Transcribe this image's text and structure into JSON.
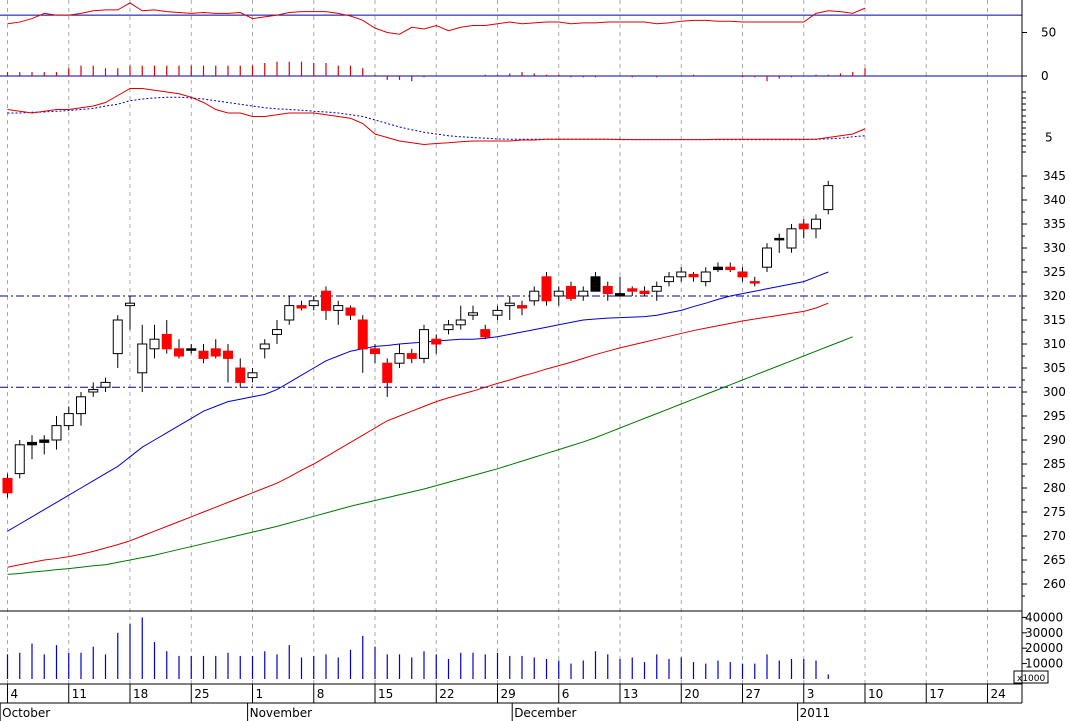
{
  "chart_data": {
    "type": "candlestick",
    "title": "",
    "xlabel": "",
    "ylabel": "",
    "colors": {
      "up_candle": "#ffffff",
      "down_candle": "#ff0000",
      "special_candle": "#000000",
      "ma_short": "#0000cc",
      "ma_mid": "#dd0000",
      "ma_long": "#007700",
      "support_lines": "#0000aa",
      "volume": "#0000cc",
      "oscillator": "#dd0000",
      "grid": "#aaaaaa"
    },
    "x_axis": {
      "day_labels": [
        {
          "slot": 0,
          "label": "4"
        },
        {
          "slot": 5,
          "label": "11"
        },
        {
          "slot": 10,
          "label": "18"
        },
        {
          "slot": 15,
          "label": "25"
        },
        {
          "slot": 20,
          "label": "1"
        },
        {
          "slot": 25,
          "label": "8"
        },
        {
          "slot": 30,
          "label": "15"
        },
        {
          "slot": 35,
          "label": "22"
        },
        {
          "slot": 40,
          "label": "29"
        },
        {
          "slot": 45,
          "label": "6"
        },
        {
          "slot": 50,
          "label": "13"
        },
        {
          "slot": 55,
          "label": "20"
        },
        {
          "slot": 60,
          "label": "27"
        },
        {
          "slot": 65,
          "label": "3"
        },
        {
          "slot": 70,
          "label": "10"
        },
        {
          "slot": 75,
          "label": "17"
        },
        {
          "slot": 80,
          "label": "24"
        }
      ],
      "month_labels": [
        {
          "slot": -0.6,
          "label": "October"
        },
        {
          "slot": 19.6,
          "label": "November"
        },
        {
          "slot": 41.2,
          "label": "December"
        },
        {
          "slot": 64.5,
          "label": "2011"
        }
      ]
    },
    "oscillator_panel": {
      "y_ticks": [
        50,
        0
      ],
      "reference_level": 70,
      "line": [
        60,
        62,
        66,
        72,
        70,
        70,
        72,
        75,
        76,
        76,
        84,
        75,
        76,
        74,
        73,
        72,
        73,
        72,
        72,
        73,
        66,
        68,
        70,
        73,
        74,
        74,
        74,
        72,
        69,
        64,
        55,
        50,
        48,
        56,
        54,
        58,
        52,
        56,
        58,
        58,
        60,
        62,
        60,
        61,
        62,
        62,
        60,
        61,
        61,
        62,
        62,
        62,
        62,
        60,
        61,
        63,
        64,
        64,
        63,
        63,
        62,
        62,
        62,
        62,
        62,
        62,
        72,
        75,
        74,
        72,
        78
      ],
      "histogram": [
        3,
        3,
        3,
        3,
        3,
        6,
        8,
        8,
        6,
        6,
        8,
        8,
        8,
        8,
        8,
        8,
        8,
        8,
        8,
        8,
        8,
        10,
        11,
        11,
        11,
        10,
        10,
        8,
        8,
        6,
        1,
        -3,
        -3,
        -4,
        -1,
        0,
        0,
        0,
        0,
        1,
        1,
        2,
        3,
        2,
        1,
        1,
        -1,
        -1,
        -1,
        0,
        0,
        -1,
        0,
        -1,
        0,
        0,
        1,
        0,
        0,
        0,
        -1,
        -1,
        -4,
        -2,
        -1,
        0,
        1,
        1,
        2,
        3,
        6
      ]
    },
    "macd_panel": {
      "y_ticks": [
        5
      ],
      "line": [
        13,
        12.5,
        12,
        12.5,
        13,
        13,
        13.5,
        14,
        15,
        17,
        19,
        19,
        18.5,
        18,
        17.5,
        16.5,
        15,
        13,
        12,
        12,
        11,
        11,
        11.5,
        12,
        12,
        12,
        11.5,
        11,
        10.5,
        9,
        6,
        5,
        4,
        3.5,
        3,
        3.3,
        3.5,
        3.8,
        4,
        4,
        4,
        4,
        4.3,
        4.3,
        4.5,
        4.5,
        4.5,
        4.5,
        4.5,
        4.5,
        4.4,
        4.4,
        4.4,
        4.4,
        4.4,
        4.4,
        4.4,
        4.4,
        4.5,
        4.5,
        4.5,
        4.5,
        4.5,
        4.5,
        4.5,
        4.5,
        4.5,
        5,
        5.5,
        6,
        7.5
      ],
      "signal": [
        12,
        12,
        12.2,
        12.3,
        12.5,
        12.7,
        13,
        13.3,
        14,
        14.5,
        15.5,
        16,
        16.3,
        16.5,
        16.5,
        16.3,
        16,
        15.5,
        15,
        14.5,
        14,
        13.5,
        13.2,
        13,
        12.8,
        12.5,
        12.3,
        12,
        11.5,
        11,
        10,
        9,
        8,
        7.2,
        6.5,
        6,
        5.5,
        5.2,
        5,
        4.8,
        4.6,
        4.5,
        4.5,
        4.5,
        4.5,
        4.5,
        4.5,
        4.5,
        4.5,
        4.5,
        4.5,
        4.4,
        4.4,
        4.4,
        4.4,
        4.4,
        4.4,
        4.4,
        4.4,
        4.4,
        4.4,
        4.4,
        4.4,
        4.4,
        4.4,
        4.4,
        4.5,
        4.6,
        4.8,
        5.2,
        5.5
      ]
    },
    "price_panel": {
      "y_ticks": [
        260,
        265,
        270,
        275,
        280,
        285,
        290,
        295,
        300,
        305,
        310,
        315,
        320,
        325,
        330,
        335,
        340,
        345
      ],
      "horizontal_levels": [
        320,
        301
      ],
      "candles": [
        {
          "o": 282,
          "h": 283,
          "l": 278,
          "c": 279,
          "k": "dn"
        },
        {
          "o": 283,
          "h": 290,
          "l": 282,
          "c": 289,
          "k": "up"
        },
        {
          "o": 289,
          "h": 291,
          "l": 286,
          "c": 289.5,
          "k": "sp"
        },
        {
          "o": 289.5,
          "h": 291,
          "l": 287,
          "c": 290,
          "k": "sp"
        },
        {
          "o": 290,
          "h": 295,
          "l": 288,
          "c": 293,
          "k": "up"
        },
        {
          "o": 293,
          "h": 297,
          "l": 292,
          "c": 295.5,
          "k": "up"
        },
        {
          "o": 295.5,
          "h": 300,
          "l": 293,
          "c": 299,
          "k": "up"
        },
        {
          "o": 300,
          "h": 302,
          "l": 299,
          "c": 300.5,
          "k": "up"
        },
        {
          "o": 301,
          "h": 303,
          "l": 300,
          "c": 302,
          "k": "up"
        },
        {
          "o": 308,
          "h": 316,
          "l": 305,
          "c": 315,
          "k": "up"
        },
        {
          "o": 318,
          "h": 320,
          "l": 313,
          "c": 318.5,
          "k": "up"
        },
        {
          "o": 304,
          "h": 314,
          "l": 300,
          "c": 310,
          "k": "up"
        },
        {
          "o": 309,
          "h": 314,
          "l": 307,
          "c": 311,
          "k": "up"
        },
        {
          "o": 312,
          "h": 315,
          "l": 308,
          "c": 309,
          "k": "dn"
        },
        {
          "o": 309,
          "h": 311,
          "l": 307,
          "c": 307.5,
          "k": "dn"
        },
        {
          "o": 309,
          "h": 310,
          "l": 308,
          "c": 309,
          "k": "sp"
        },
        {
          "o": 308.5,
          "h": 310,
          "l": 306,
          "c": 307,
          "k": "dn"
        },
        {
          "o": 309,
          "h": 311,
          "l": 307,
          "c": 307.5,
          "k": "dn"
        },
        {
          "o": 308.5,
          "h": 310,
          "l": 302,
          "c": 307,
          "k": "dn"
        },
        {
          "o": 305,
          "h": 307,
          "l": 301,
          "c": 302,
          "k": "dn"
        },
        {
          "o": 303,
          "h": 305,
          "l": 302,
          "c": 304,
          "k": "up"
        },
        {
          "o": 309,
          "h": 311,
          "l": 307,
          "c": 310,
          "k": "up"
        },
        {
          "o": 312,
          "h": 315,
          "l": 310,
          "c": 313,
          "k": "up"
        },
        {
          "o": 315,
          "h": 320,
          "l": 314,
          "c": 318,
          "k": "up"
        },
        {
          "o": 318,
          "h": 319,
          "l": 317,
          "c": 317.5,
          "k": "dn"
        },
        {
          "o": 318,
          "h": 320,
          "l": 317,
          "c": 319,
          "k": "up"
        },
        {
          "o": 321,
          "h": 322,
          "l": 315,
          "c": 317,
          "k": "dn"
        },
        {
          "o": 317,
          "h": 319,
          "l": 314,
          "c": 318,
          "k": "up"
        },
        {
          "o": 317.5,
          "h": 318,
          "l": 315,
          "c": 316,
          "k": "dn"
        },
        {
          "o": 315,
          "h": 316,
          "l": 304,
          "c": 309,
          "k": "dn"
        },
        {
          "o": 309,
          "h": 310,
          "l": 306,
          "c": 308,
          "k": "dn"
        },
        {
          "o": 306,
          "h": 307,
          "l": 299,
          "c": 302,
          "k": "dn"
        },
        {
          "o": 306,
          "h": 310,
          "l": 305,
          "c": 308,
          "k": "up"
        },
        {
          "o": 308,
          "h": 309,
          "l": 306,
          "c": 307,
          "k": "dn"
        },
        {
          "o": 307,
          "h": 314,
          "l": 306,
          "c": 313,
          "k": "up"
        },
        {
          "o": 311,
          "h": 312,
          "l": 308,
          "c": 310,
          "k": "dn"
        },
        {
          "o": 313,
          "h": 315,
          "l": 312,
          "c": 314,
          "k": "up"
        },
        {
          "o": 314,
          "h": 318,
          "l": 313,
          "c": 315,
          "k": "up"
        },
        {
          "o": 316,
          "h": 318,
          "l": 315,
          "c": 316.5,
          "k": "up"
        },
        {
          "o": 313,
          "h": 314,
          "l": 311,
          "c": 311.5,
          "k": "dn"
        },
        {
          "o": 316,
          "h": 318,
          "l": 315,
          "c": 317,
          "k": "up"
        },
        {
          "o": 318,
          "h": 320,
          "l": 315,
          "c": 318.5,
          "k": "up"
        },
        {
          "o": 318,
          "h": 319,
          "l": 316,
          "c": 317.5,
          "k": "dn"
        },
        {
          "o": 319,
          "h": 322,
          "l": 318,
          "c": 321,
          "k": "up"
        },
        {
          "o": 324,
          "h": 325,
          "l": 318,
          "c": 319,
          "k": "dn"
        },
        {
          "o": 320,
          "h": 322,
          "l": 318,
          "c": 321,
          "k": "up"
        },
        {
          "o": 322,
          "h": 323,
          "l": 319,
          "c": 319.5,
          "k": "dn"
        },
        {
          "o": 320,
          "h": 322,
          "l": 319,
          "c": 321,
          "k": "up"
        },
        {
          "o": 324,
          "h": 325,
          "l": 321,
          "c": 321,
          "k": "sp"
        },
        {
          "o": 322,
          "h": 323,
          "l": 319,
          "c": 320.5,
          "k": "dn"
        },
        {
          "o": 320,
          "h": 324,
          "l": 320,
          "c": 320.5,
          "k": "sp"
        },
        {
          "o": 321,
          "h": 322,
          "l": 320,
          "c": 321.5,
          "k": "dn"
        },
        {
          "o": 321,
          "h": 322,
          "l": 320,
          "c": 320.5,
          "k": "dn"
        },
        {
          "o": 321,
          "h": 323,
          "l": 319,
          "c": 322,
          "k": "up"
        },
        {
          "o": 323,
          "h": 325,
          "l": 322,
          "c": 324,
          "k": "up"
        },
        {
          "o": 324,
          "h": 326,
          "l": 323,
          "c": 325,
          "k": "up"
        },
        {
          "o": 324.5,
          "h": 325,
          "l": 323,
          "c": 324,
          "k": "dn"
        },
        {
          "o": 323,
          "h": 326,
          "l": 322,
          "c": 325,
          "k": "up"
        },
        {
          "o": 325.5,
          "h": 327,
          "l": 325,
          "c": 326,
          "k": "sp"
        },
        {
          "o": 326,
          "h": 327,
          "l": 325,
          "c": 325.5,
          "k": "dn"
        },
        {
          "o": 325,
          "h": 326,
          "l": 323,
          "c": 324,
          "k": "dn"
        },
        {
          "o": 323,
          "h": 324,
          "l": 322,
          "c": 323,
          "k": "dn"
        },
        {
          "o": 326,
          "h": 331,
          "l": 325,
          "c": 330,
          "k": "up"
        },
        {
          "o": 332,
          "h": 333,
          "l": 329,
          "c": 332,
          "k": "sp"
        },
        {
          "o": 330,
          "h": 335,
          "l": 329,
          "c": 334,
          "k": "up"
        },
        {
          "o": 335,
          "h": 336,
          "l": 332,
          "c": 334,
          "k": "dn"
        },
        {
          "o": 334,
          "h": 337,
          "l": 332,
          "c": 336,
          "k": "up"
        },
        {
          "o": 338,
          "h": 344,
          "l": 337,
          "c": 343,
          "k": "up"
        }
      ],
      "ma_short": [
        271,
        272.5,
        274,
        275.5,
        277,
        278.5,
        280,
        281.5,
        283,
        284.5,
        286.5,
        288.5,
        290,
        291.5,
        293,
        294.5,
        296,
        297,
        298,
        298.5,
        299,
        299.5,
        300.5,
        302,
        303.5,
        305,
        306.5,
        307.5,
        308.5,
        309,
        309.5,
        309.7,
        310,
        310.2,
        310.4,
        310.6,
        310.8,
        311,
        311,
        311.2,
        311.5,
        312,
        312.5,
        313,
        313.5,
        314,
        314.5,
        315,
        315.2,
        315.4,
        315.5,
        315.6,
        315.7,
        316,
        316.5,
        317,
        317.8,
        318.5,
        319.3,
        320,
        320.5,
        321,
        321.5,
        322,
        322.5,
        323,
        324,
        325
      ],
      "ma_mid": [
        263.5,
        264,
        264.5,
        265,
        265.3,
        265.7,
        266.2,
        266.8,
        267.5,
        268.2,
        269,
        270,
        271,
        272,
        273,
        274,
        275,
        276,
        277,
        278,
        279,
        280,
        281,
        282.3,
        283.7,
        285,
        286.5,
        288,
        289.5,
        291,
        292.5,
        294,
        295,
        296,
        297,
        298,
        298.8,
        299.5,
        300.2,
        301,
        301.8,
        302.5,
        303.3,
        304,
        304.8,
        305.5,
        306.2,
        307,
        307.8,
        308.5,
        309.2,
        309.8,
        310.4,
        311,
        311.6,
        312.2,
        312.8,
        313.3,
        313.8,
        314.3,
        314.8,
        315.2,
        315.6,
        316,
        316.4,
        316.8,
        317.5,
        318.5
      ],
      "ma_long": [
        262,
        262.2,
        262.5,
        262.7,
        263,
        263.2,
        263.5,
        263.8,
        264,
        264.5,
        265,
        265.5,
        266,
        266.6,
        267.2,
        267.8,
        268.4,
        269,
        269.6,
        270.2,
        270.8,
        271.4,
        272,
        272.7,
        273.4,
        274.1,
        274.8,
        275.5,
        276.2,
        276.8,
        277.4,
        278,
        278.6,
        279.2,
        279.8,
        280.5,
        281.2,
        281.9,
        282.6,
        283.3,
        284,
        284.8,
        285.6,
        286.4,
        287.2,
        288,
        288.8,
        289.6,
        290.5,
        291.5,
        292.5,
        293.5,
        294.5,
        295.5,
        296.5,
        297.5,
        298.5,
        299.5,
        300.5,
        301.5,
        302.5,
        303.5,
        304.5,
        305.5,
        306.5,
        307.5,
        308.5,
        309.5,
        310.5,
        311.5
      ]
    },
    "volume_panel": {
      "y_ticks": [
        40000,
        30000,
        20000,
        10000
      ],
      "multiplier_label": "x1000",
      "values": [
        16000,
        17000,
        23000,
        16000,
        22000,
        17000,
        17000,
        21000,
        16000,
        30000,
        36000,
        40000,
        24000,
        18000,
        15000,
        15000,
        15000,
        15000,
        17000,
        15000,
        15000,
        18000,
        16000,
        22000,
        14000,
        15000,
        16000,
        14000,
        19000,
        28000,
        21000,
        16000,
        16000,
        14000,
        18000,
        16000,
        13000,
        17000,
        17000,
        16000,
        17000,
        15000,
        15000,
        14000,
        13000,
        12000,
        10000,
        12000,
        18000,
        16000,
        13000,
        14000,
        11000,
        16000,
        13000,
        14000,
        11000,
        10000,
        12000,
        11000,
        10000,
        10000,
        16000,
        12000,
        13000,
        13000,
        12000,
        3000
      ]
    }
  }
}
